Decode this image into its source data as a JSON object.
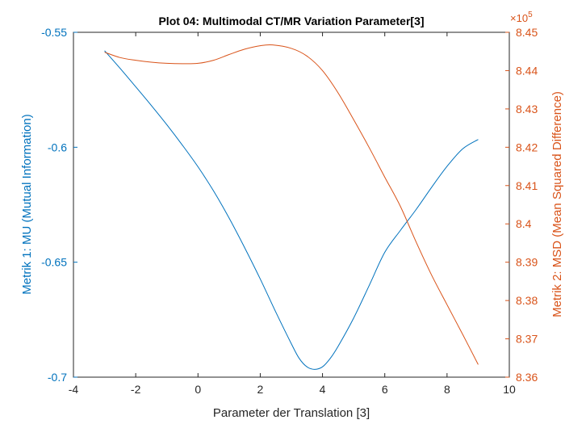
{
  "chart_data": {
    "type": "line",
    "title": "Plot 04: Multimodal CT/MR Variation Parameter[3]",
    "xlabel": "Parameter der Translation [3]",
    "xlim": [
      -4,
      10
    ],
    "xticks": [
      -4,
      -2,
      0,
      2,
      4,
      6,
      8,
      10
    ],
    "grid": false,
    "y_left": {
      "label": "Metrik 1: MU (Mutual Information)",
      "lim": [
        -0.7,
        -0.55
      ],
      "ticks": [
        -0.7,
        -0.65,
        -0.6,
        -0.55
      ],
      "color": "#0072BD"
    },
    "y_right": {
      "label": "Metrik 2: MSD (Mean Squared Difference)",
      "lim": [
        8.36,
        8.45
      ],
      "ticks": [
        8.36,
        8.37,
        8.38,
        8.39,
        8.4,
        8.41,
        8.42,
        8.43,
        8.44,
        8.45
      ],
      "multiplier": "×10",
      "exponent": "5",
      "color": "#D95319"
    },
    "series": [
      {
        "axis": "left",
        "color": "#0072BD",
        "x": [
          -3,
          -2.5,
          -2,
          -1.5,
          -1,
          -0.5,
          0,
          0.5,
          1,
          1.5,
          2,
          2.5,
          3,
          3.25,
          3.5,
          3.75,
          4,
          4.25,
          4.5,
          5,
          5.5,
          6,
          6.5,
          7,
          7.5,
          8,
          8.5,
          9
        ],
        "y": [
          -0.558,
          -0.5657,
          -0.5737,
          -0.5818,
          -0.5902,
          -0.5991,
          -0.6085,
          -0.619,
          -0.6308,
          -0.6437,
          -0.6573,
          -0.6717,
          -0.6855,
          -0.6918,
          -0.6955,
          -0.6966,
          -0.6955,
          -0.6918,
          -0.6866,
          -0.6743,
          -0.6601,
          -0.6457,
          -0.6362,
          -0.6272,
          -0.6175,
          -0.6083,
          -0.6007,
          -0.5966
        ]
      },
      {
        "axis": "right",
        "color": "#D95319",
        "x": [
          -3,
          -2.5,
          -2,
          -1.5,
          -1,
          -0.5,
          0,
          0.5,
          1,
          1.5,
          2,
          2.4,
          3,
          3.5,
          4,
          4.5,
          5,
          5.5,
          6,
          6.5,
          7,
          7.5,
          8,
          8.5,
          9
        ],
        "y": [
          8.4448,
          8.4434,
          8.4427,
          8.4422,
          8.4419,
          8.4418,
          8.4419,
          8.4427,
          8.4442,
          8.4456,
          8.4465,
          8.4467,
          8.4458,
          8.4438,
          8.44,
          8.4342,
          8.4272,
          8.4199,
          8.4122,
          8.4046,
          8.3954,
          8.3867,
          8.3789,
          8.3712,
          8.3633
        ]
      }
    ]
  }
}
